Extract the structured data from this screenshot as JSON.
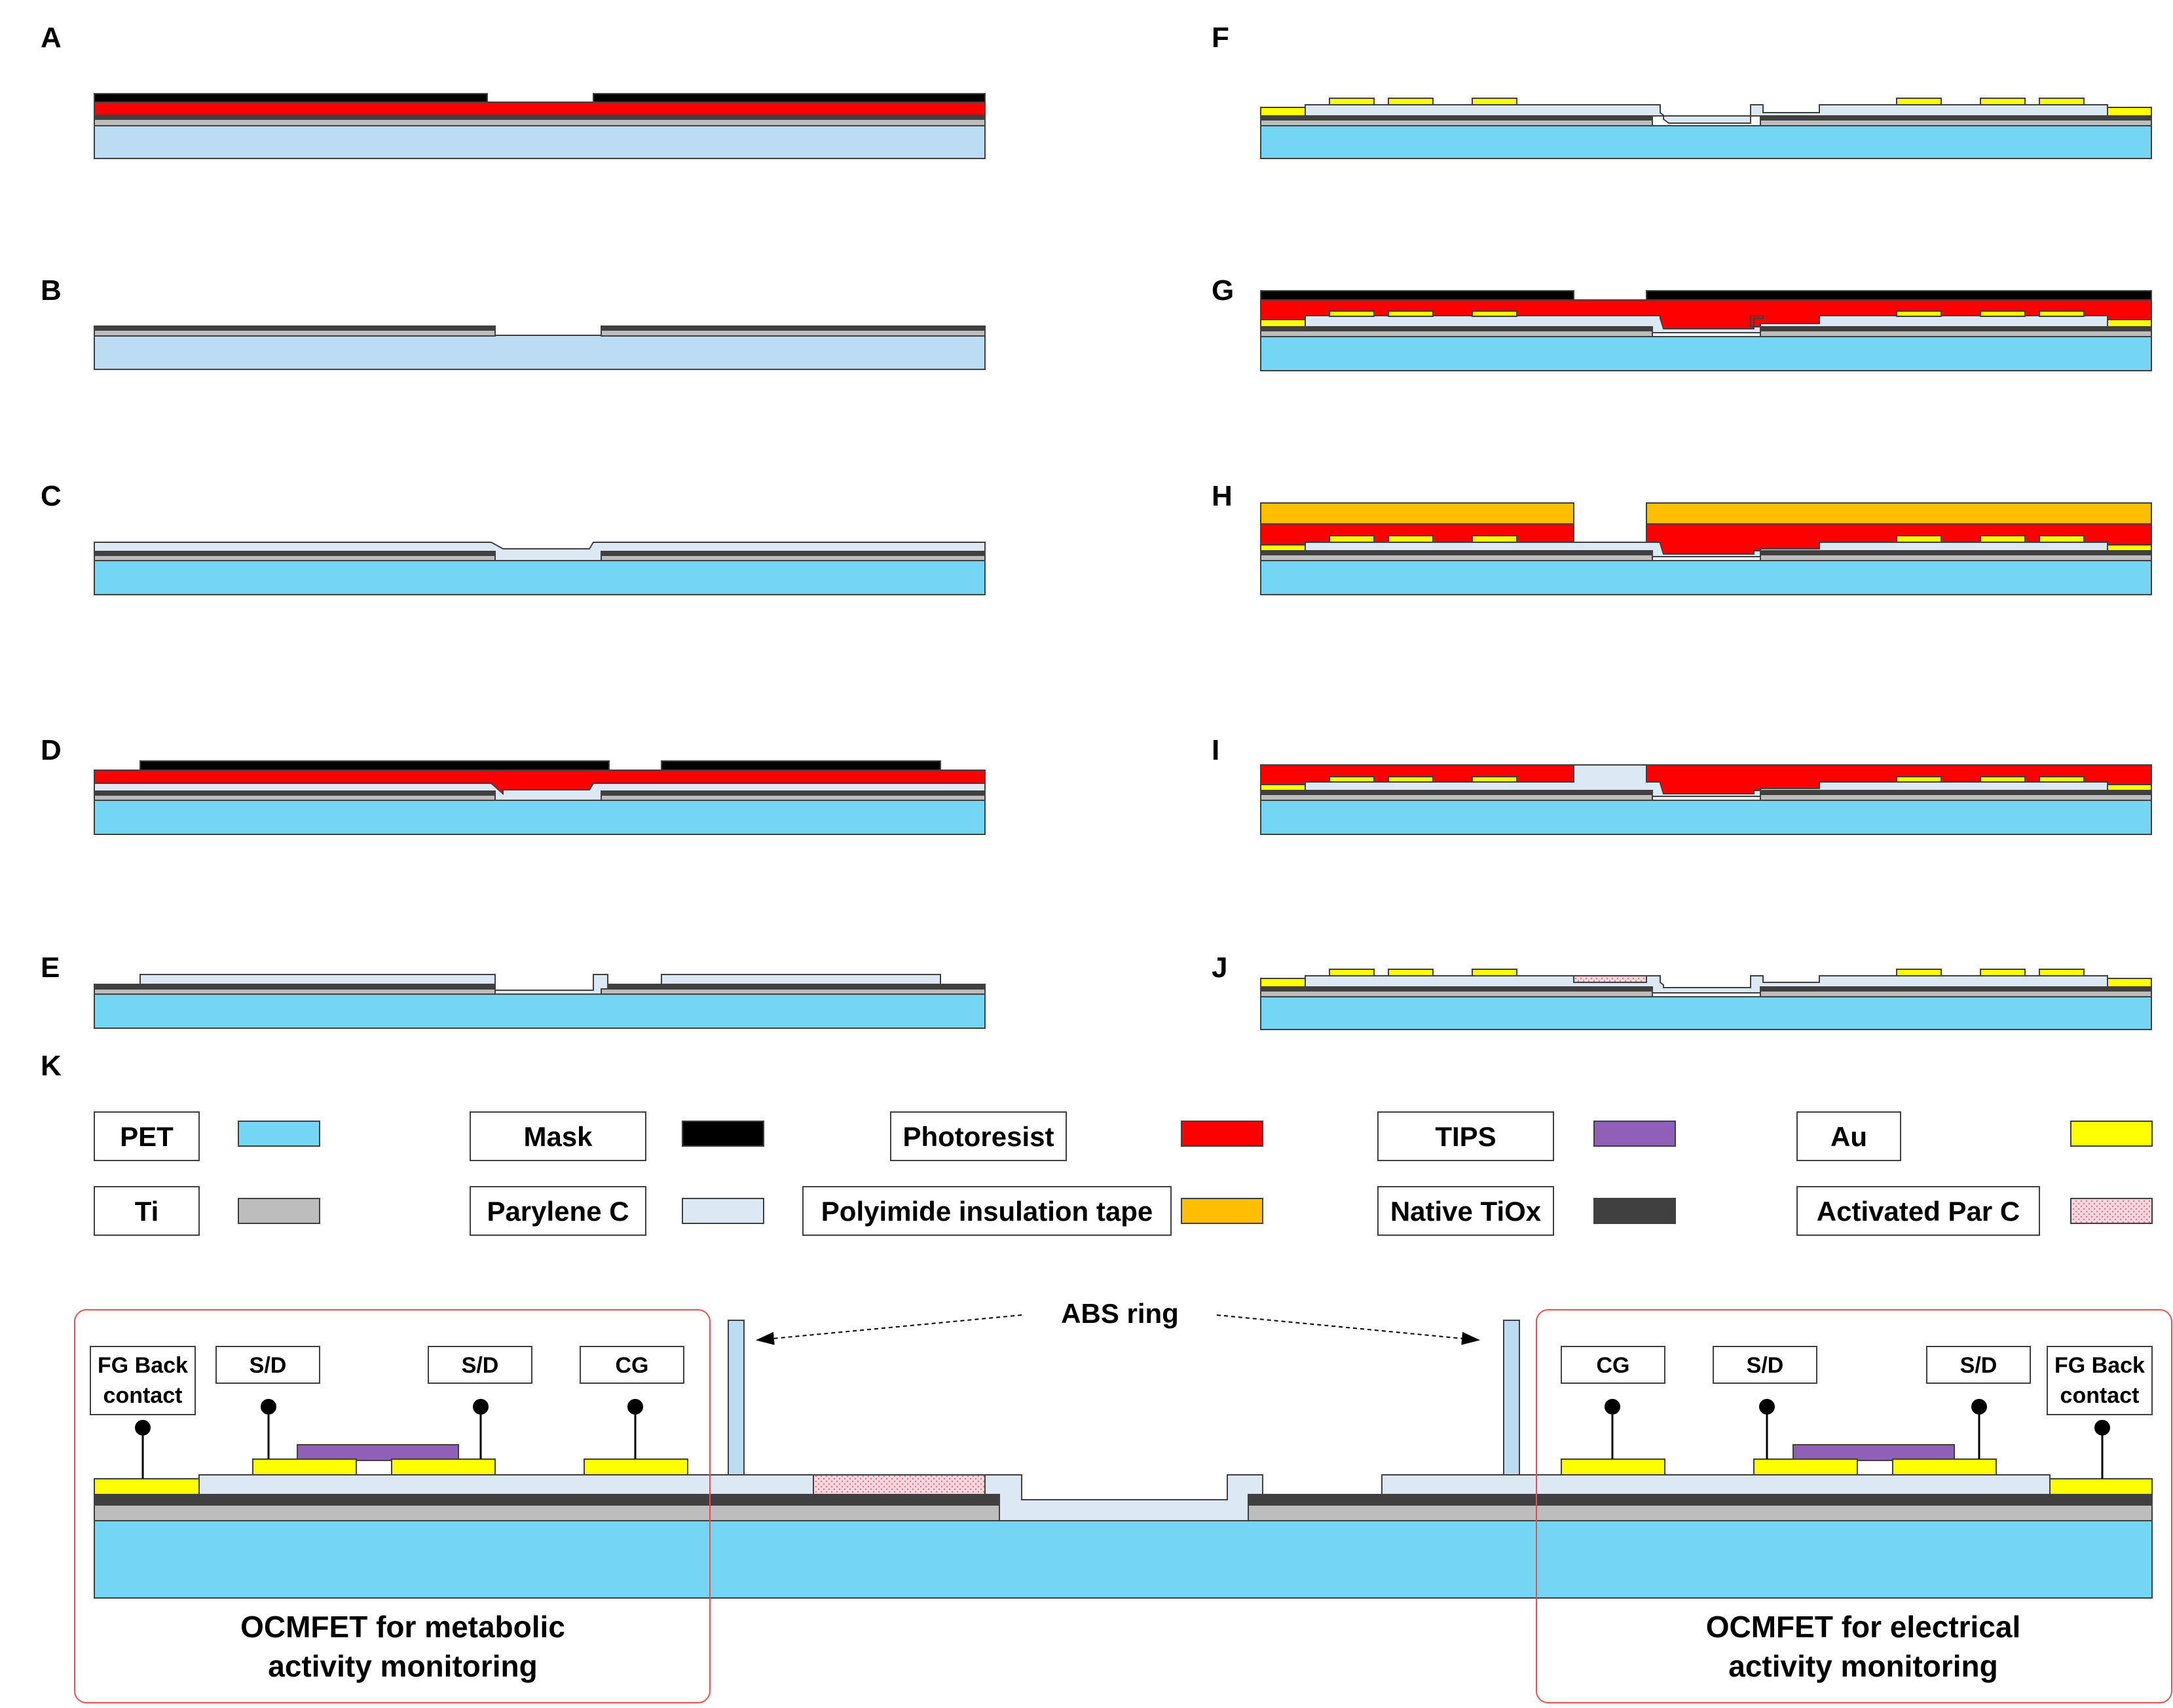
{
  "panels": {
    "A": "A",
    "B": "B",
    "C": "C",
    "D": "D",
    "E": "E",
    "F": "F",
    "G": "G",
    "H": "H",
    "I": "I",
    "J": "J",
    "K": "K"
  },
  "colors": {
    "pet": "#75d5f5",
    "pet_light": "#bcdcf4",
    "ti": "#bdbdbd",
    "tiox": "#404040",
    "mask": "#000000",
    "photoresist": "#ff0000",
    "parylene": "#dce9f4",
    "polyimide": "#ffbf00",
    "au": "#ffff00",
    "tips": "#9060b8",
    "activated": "#f8d8e0",
    "activated_dots": "#e07080",
    "stroke": "#404040",
    "region_border": "#e85050"
  },
  "legend": [
    {
      "label": "PET",
      "color_key": "pet"
    },
    {
      "label": "Mask",
      "color_key": "mask"
    },
    {
      "label": "Photoresist",
      "color_key": "photoresist"
    },
    {
      "label": "TIPS",
      "color_key": "tips"
    },
    {
      "label": "Au",
      "color_key": "au"
    },
    {
      "label": "Ti",
      "color_key": "ti"
    },
    {
      "label": "Parylene C",
      "color_key": "parylene"
    },
    {
      "label": "Polyimide insulation tape",
      "color_key": "polyimide"
    },
    {
      "label": "Native TiOx",
      "color_key": "tiox"
    },
    {
      "label": "Activated Par C",
      "color_key": "activated"
    }
  ],
  "device": {
    "abs_ring_label": "ABS ring",
    "left_labels": {
      "fg_line1": "FG Back",
      "fg_line2": "contact",
      "sd1": "S/D",
      "sd2": "S/D",
      "cg": "CG"
    },
    "right_labels": {
      "cg": "CG",
      "sd1": "S/D",
      "sd2": "S/D",
      "fg_line1": "FG Back",
      "fg_line2": "contact"
    },
    "left_caption_line1": "OCMFET for metabolic",
    "left_caption_line2": "activity monitoring",
    "right_caption_line1": "OCMFET for electrical",
    "right_caption_line2": "activity monitoring"
  }
}
